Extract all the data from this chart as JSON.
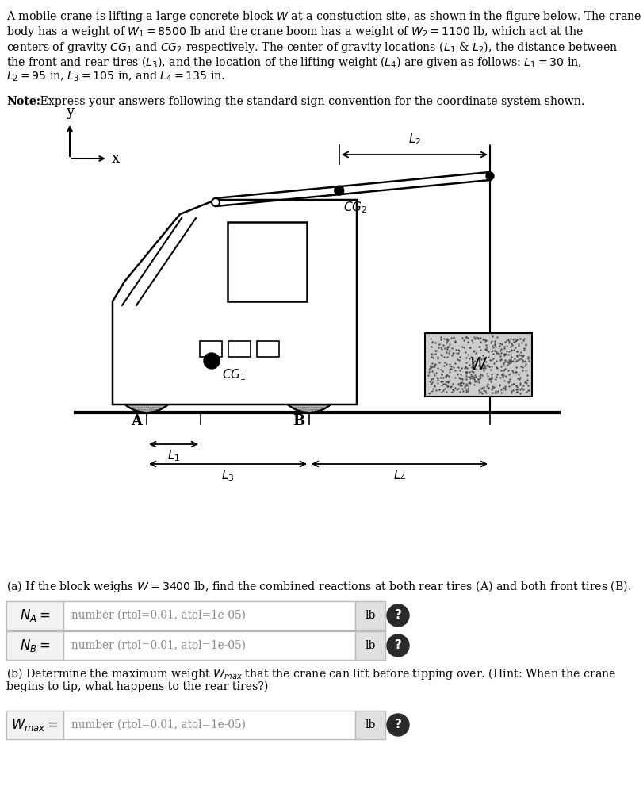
{
  "bg_color": "#ffffff",
  "text_color": "#000000",
  "placeholder_color": "#888888",
  "input_bg": "#f5f5f5",
  "unit_bg": "#e0e0e0",
  "btn_color": "#333333",
  "line_color": "#000000",
  "tire_color": "#b0b0b0",
  "block_color": "#cccccc",
  "top_text_lines": [
    "A mobile crane is lifting a large concrete block $W$ at a constuction site, as shown in the figure below. The crane",
    "body has a weight of $W_1 = 8500$ lb and the crane boom has a weight of $W_2 = 1100$ lb, which act at the",
    "centers of gravity $CG_1$ and $CG_2$ respectively. The center of gravity locations ($L_1$ & $L_2$), the distance between",
    "the front and rear tires ($L_3$), and the location of the lifting weight ($L_4$) are given as follows: $L_1 = 30$ in,",
    "$L_2 = 95$ in, $L_3 = 105$ in, and $L_4 = 135$ in."
  ],
  "note_bold": "Note:",
  "note_rest": " Express your answers following the standard sign convention for the coordinate system shown.",
  "part_a_line": "(a) If the block weighs $W = 3400$ lb, find the combined reactions at both rear tires (A) and both front tires (B).",
  "part_b_line1": "(b) Determine the maximum weight $W_{max}$ that the crane can lift before tipping over. (Hint: When the crane",
  "part_b_line2": "begins to tip, what happens to the rear tires?)",
  "NA_label": "$N_A =$",
  "NB_label": "$N_B =$",
  "Wmax_label": "$W_{max} =$",
  "placeholder": "number (rtol=0.01, atol=1e-05)",
  "unit": "lb"
}
